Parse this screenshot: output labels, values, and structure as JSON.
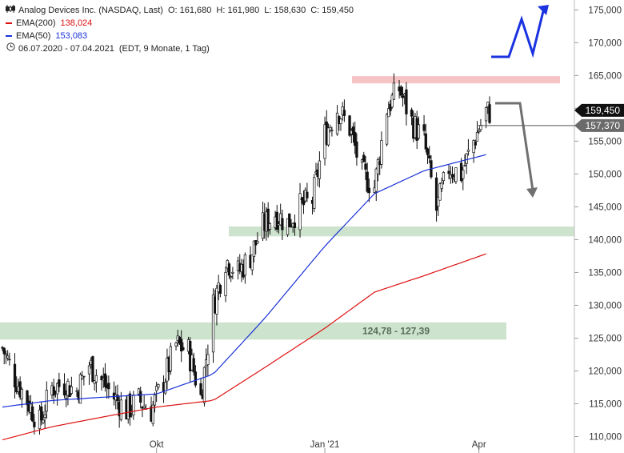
{
  "legend": {
    "title": "Analog Devices Inc. (NASDAQ, Last)",
    "open": "O: 161,680",
    "high": "H: 161,980",
    "low": "L: 158,630",
    "close": "C: 159,450",
    "ema200_label": "EMA(200)",
    "ema200_value": "138,024",
    "ema50_label": "EMA(50)",
    "ema50_value": "153,083",
    "range": "06.07.2020 - 07.04.2021",
    "range_note": "(EDT, 9 Monate, 1 Tag)"
  },
  "colors": {
    "ema200": "#dd1111",
    "ema50": "#1a32d8",
    "candle": "#111111",
    "resistance_zone": "#f6c4c4",
    "support_zone": "#cde3cd",
    "arrow_up": "#1a32e0",
    "arrow_down": "#707070",
    "last_price_bg": "#111111",
    "ema50_price_bg": "#6b6b6b"
  },
  "chart_data": {
    "type": "line",
    "x_ticks": [
      "Okt",
      "Jan '21",
      "Apr"
    ],
    "y_ticks": [
      "110,000",
      "115,000",
      "120,000",
      "125,000",
      "130,000",
      "135,000",
      "140,000",
      "145,000",
      "150,000",
      "155,000",
      "160,000",
      "165,000",
      "170,000",
      "175,000"
    ],
    "ylim": [
      107.5,
      176.5
    ],
    "x_range": [
      "2020-07-06",
      "2021-04-07"
    ],
    "price_tags": {
      "last": "159,450",
      "second": "157,370"
    },
    "zones": [
      {
        "from": 163.8,
        "to": 164.9,
        "kind": "resistance",
        "label": ""
      },
      {
        "from": 140.5,
        "to": 142.0,
        "kind": "support",
        "label": ""
      },
      {
        "from": 124.78,
        "to": 127.39,
        "kind": "support",
        "label": "124,78 - 127,39"
      }
    ],
    "series": [
      {
        "name": "Analog Devices Inc.",
        "kind": "close",
        "x": [
          "2020-07-06",
          "2020-07-13",
          "2020-07-20",
          "2020-07-27",
          "2020-08-03",
          "2020-08-10",
          "2020-08-17",
          "2020-08-24",
          "2020-08-31",
          "2020-09-07",
          "2020-09-14",
          "2020-09-21",
          "2020-09-28",
          "2020-10-05",
          "2020-10-12",
          "2020-10-19",
          "2020-10-26",
          "2020-11-02",
          "2020-11-09",
          "2020-11-16",
          "2020-11-23",
          "2020-11-30",
          "2020-12-07",
          "2020-12-14",
          "2020-12-21",
          "2020-12-28",
          "2021-01-04",
          "2021-01-11",
          "2021-01-18",
          "2021-01-25",
          "2021-02-01",
          "2021-02-08",
          "2021-02-15",
          "2021-02-22",
          "2021-03-01",
          "2021-03-08",
          "2021-03-15",
          "2021-03-22",
          "2021-03-29",
          "2021-04-05"
        ],
        "values": [
          123.5,
          119.0,
          115.5,
          112.0,
          117.5,
          118.0,
          117.0,
          121.0,
          118.5,
          116.0,
          114.0,
          115.5,
          114.0,
          118.5,
          124.0,
          123.0,
          116.0,
          130.0,
          137.0,
          135.0,
          137.5,
          142.0,
          144.0,
          142.5,
          145.0,
          146.0,
          156.0,
          160.0,
          157.0,
          150.0,
          148.0,
          160.0,
          163.0,
          158.0,
          155.0,
          144.5,
          151.0,
          150.0,
          155.0,
          159.45
        ]
      },
      {
        "name": "EMA(200)",
        "x": [
          "2020-07-06",
          "2020-08-03",
          "2020-09-01",
          "2020-10-01",
          "2020-11-02",
          "2020-12-01",
          "2021-01-04",
          "2021-02-01",
          "2021-03-01",
          "2021-04-07"
        ],
        "values": [
          109.5,
          111.5,
          113.0,
          114.5,
          115.5,
          120.5,
          126.5,
          132.0,
          134.5,
          138.024
        ]
      },
      {
        "name": "EMA(50)",
        "x": [
          "2020-07-06",
          "2020-08-03",
          "2020-09-01",
          "2020-10-01",
          "2020-11-02",
          "2020-12-01",
          "2021-01-04",
          "2021-02-01",
          "2021-03-01",
          "2021-04-07"
        ],
        "values": [
          114.5,
          115.5,
          116.0,
          116.5,
          119.5,
          128.0,
          139.0,
          147.0,
          150.5,
          153.083
        ]
      }
    ]
  }
}
